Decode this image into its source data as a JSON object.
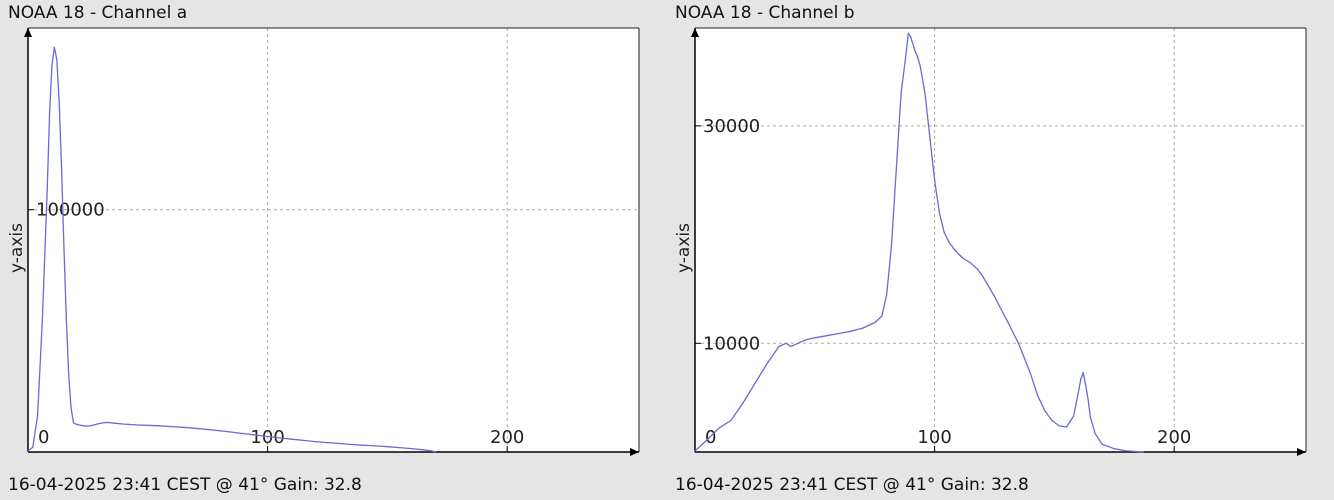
{
  "charts": [
    {
      "title": "NOAA 18 - Channel a",
      "footer": "16-04-2025 23:41 CEST @ 41° Gain: 32.8"
    },
    {
      "title": "NOAA 18 - Channel b",
      "footer": "16-04-2025 23:41 CEST @ 41° Gain: 32.8"
    }
  ],
  "chart_data": [
    {
      "type": "line",
      "title": "NOAA 18 - Channel a",
      "xlabel": "",
      "ylabel": "y-axis",
      "xlim": [
        0,
        255
      ],
      "ylim": [
        0,
        175000
      ],
      "xticks": [
        0,
        100,
        200
      ],
      "yticks": [
        100000
      ],
      "grid": true,
      "line_color": "#6a6ad6",
      "series": [
        {
          "x": [
            0,
            2,
            4,
            6,
            8,
            9,
            10,
            11,
            12,
            13,
            14,
            15,
            16,
            17,
            18,
            19,
            20,
            22,
            24,
            26,
            28,
            30,
            33,
            36,
            40,
            45,
            50,
            55,
            60,
            65,
            70,
            75,
            80,
            85,
            90,
            95,
            100,
            105,
            110,
            115,
            120,
            125,
            130,
            135,
            140,
            145,
            150,
            155,
            160,
            165,
            168,
            170
          ],
          "y": [
            400,
            2000,
            15000,
            55000,
            108000,
            140000,
            160000,
            167000,
            162000,
            145000,
            118000,
            85000,
            55000,
            32000,
            18000,
            12000,
            11500,
            11000,
            10700,
            10800,
            11300,
            11800,
            12200,
            11900,
            11500,
            11200,
            11000,
            10800,
            10500,
            10200,
            9800,
            9300,
            8800,
            8200,
            7600,
            7000,
            6400,
            5800,
            5300,
            4800,
            4300,
            3900,
            3500,
            3100,
            2800,
            2500,
            2200,
            1800,
            1400,
            900,
            500,
            100
          ]
        }
      ]
    },
    {
      "type": "line",
      "title": "NOAA 18 - Channel b",
      "xlabel": "",
      "ylabel": "y-axis",
      "xlim": [
        0,
        255
      ],
      "ylim": [
        0,
        39000
      ],
      "xticks": [
        0,
        100,
        200
      ],
      "yticks": [
        10000,
        30000
      ],
      "grid": true,
      "line_color": "#6a6ad6",
      "series": [
        {
          "x": [
            0,
            5,
            10,
            15,
            20,
            25,
            30,
            35,
            38,
            40,
            43,
            46,
            50,
            55,
            60,
            65,
            70,
            75,
            78,
            80,
            82,
            84,
            86,
            88,
            89,
            90,
            91,
            92,
            93,
            94,
            96,
            98,
            100,
            102,
            104,
            106,
            108,
            110,
            112,
            115,
            118,
            120,
            125,
            130,
            135,
            140,
            143,
            146,
            149,
            152,
            155,
            158,
            160,
            161,
            162,
            163,
            164,
            165,
            167,
            170,
            175,
            180,
            187
          ],
          "y": [
            100,
            1100,
            2200,
            2900,
            4500,
            6300,
            8100,
            9700,
            10000,
            9700,
            10000,
            10300,
            10500,
            10700,
            10900,
            11100,
            11400,
            11900,
            12500,
            14500,
            19000,
            26000,
            33000,
            36500,
            38500,
            38200,
            37500,
            36800,
            36300,
            35500,
            33000,
            29000,
            25000,
            22000,
            20200,
            19300,
            18700,
            18200,
            17800,
            17400,
            16800,
            16200,
            14300,
            12200,
            10000,
            7200,
            5200,
            3800,
            2900,
            2400,
            2300,
            3300,
            5500,
            6700,
            7300,
            6200,
            4900,
            3200,
            1700,
            700,
            300,
            100,
            0
          ]
        }
      ]
    }
  ]
}
